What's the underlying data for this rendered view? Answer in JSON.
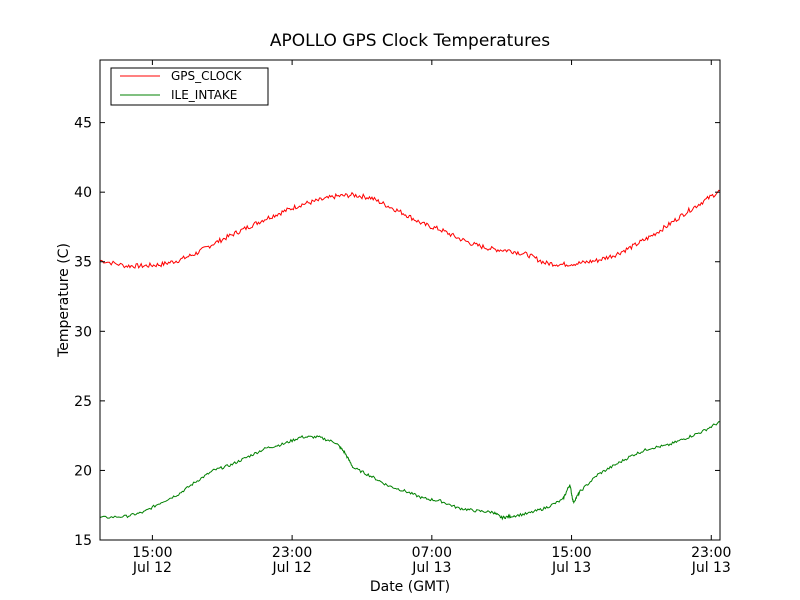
{
  "chart_data": {
    "type": "line",
    "title": "APOLLO GPS Clock Temperatures",
    "xlabel": "Date (GMT)",
    "ylabel": "Temperature (C)",
    "x_unit": "hours since Jul 12 00:00 GMT",
    "xlim": [
      12.0,
      47.5
    ],
    "ylim": [
      15,
      49.5
    ],
    "y_ticks": [
      15,
      20,
      25,
      30,
      35,
      40,
      45
    ],
    "x_ticks": [
      {
        "x": 15,
        "time": "15:00",
        "date": "Jul 12"
      },
      {
        "x": 23,
        "time": "23:00",
        "date": "Jul 12"
      },
      {
        "x": 31,
        "time": "07:00",
        "date": "Jul 13"
      },
      {
        "x": 39,
        "time": "15:00",
        "date": "Jul 13"
      },
      {
        "x": 47,
        "time": "23:00",
        "date": "Jul 13"
      }
    ],
    "legend_position": "top-left",
    "series": [
      {
        "name": "GPS_CLOCK",
        "color": "#ff0000",
        "x": [
          12.0,
          13.5,
          14.5,
          15.5,
          16.5,
          17.5,
          18.5,
          19.5,
          20.5,
          21.5,
          22.5,
          23.5,
          24.5,
          25.5,
          26.5,
          27.5,
          28.5,
          29.5,
          30.5,
          31.5,
          32.5,
          33.5,
          34.5,
          35.5,
          36.5,
          37.5,
          38.5,
          39.5,
          40.5,
          41.5,
          42.5,
          43.5,
          44.5,
          45.5,
          46.5,
          47.5
        ],
        "values": [
          35.1,
          34.7,
          34.7,
          34.8,
          35.1,
          35.6,
          36.3,
          36.9,
          37.5,
          38.1,
          38.6,
          39.1,
          39.4,
          39.7,
          39.8,
          39.6,
          39.0,
          38.4,
          37.7,
          37.3,
          36.7,
          36.2,
          35.9,
          35.8,
          35.5,
          34.9,
          34.8,
          34.9,
          35.1,
          35.5,
          36.1,
          36.8,
          37.6,
          38.5,
          39.3,
          40.1
        ]
      },
      {
        "name": "ILE_INTAKE",
        "color": "#008000",
        "x": [
          12.0,
          13.5,
          14.5,
          15.5,
          16.5,
          17.5,
          18.5,
          19.5,
          20.5,
          21.5,
          22.5,
          23.5,
          24.5,
          25.5,
          26.0,
          26.5,
          27.5,
          28.5,
          29.5,
          30.5,
          31.5,
          32.5,
          33.5,
          34.5,
          35.0,
          35.5,
          36.5,
          37.5,
          38.5,
          38.9,
          39.1,
          39.5,
          40.5,
          41.5,
          42.5,
          43.5,
          44.5,
          45.5,
          46.5,
          47.5
        ],
        "values": [
          16.6,
          16.7,
          17.0,
          17.7,
          18.3,
          19.2,
          20.0,
          20.4,
          21.0,
          21.6,
          21.9,
          22.4,
          22.4,
          22.0,
          21.3,
          20.2,
          19.6,
          18.9,
          18.5,
          18.0,
          17.8,
          17.3,
          17.1,
          17.0,
          16.6,
          16.7,
          16.9,
          17.3,
          17.9,
          19.0,
          17.7,
          18.5,
          19.7,
          20.4,
          21.1,
          21.6,
          21.8,
          22.3,
          22.8,
          23.5
        ]
      }
    ]
  }
}
